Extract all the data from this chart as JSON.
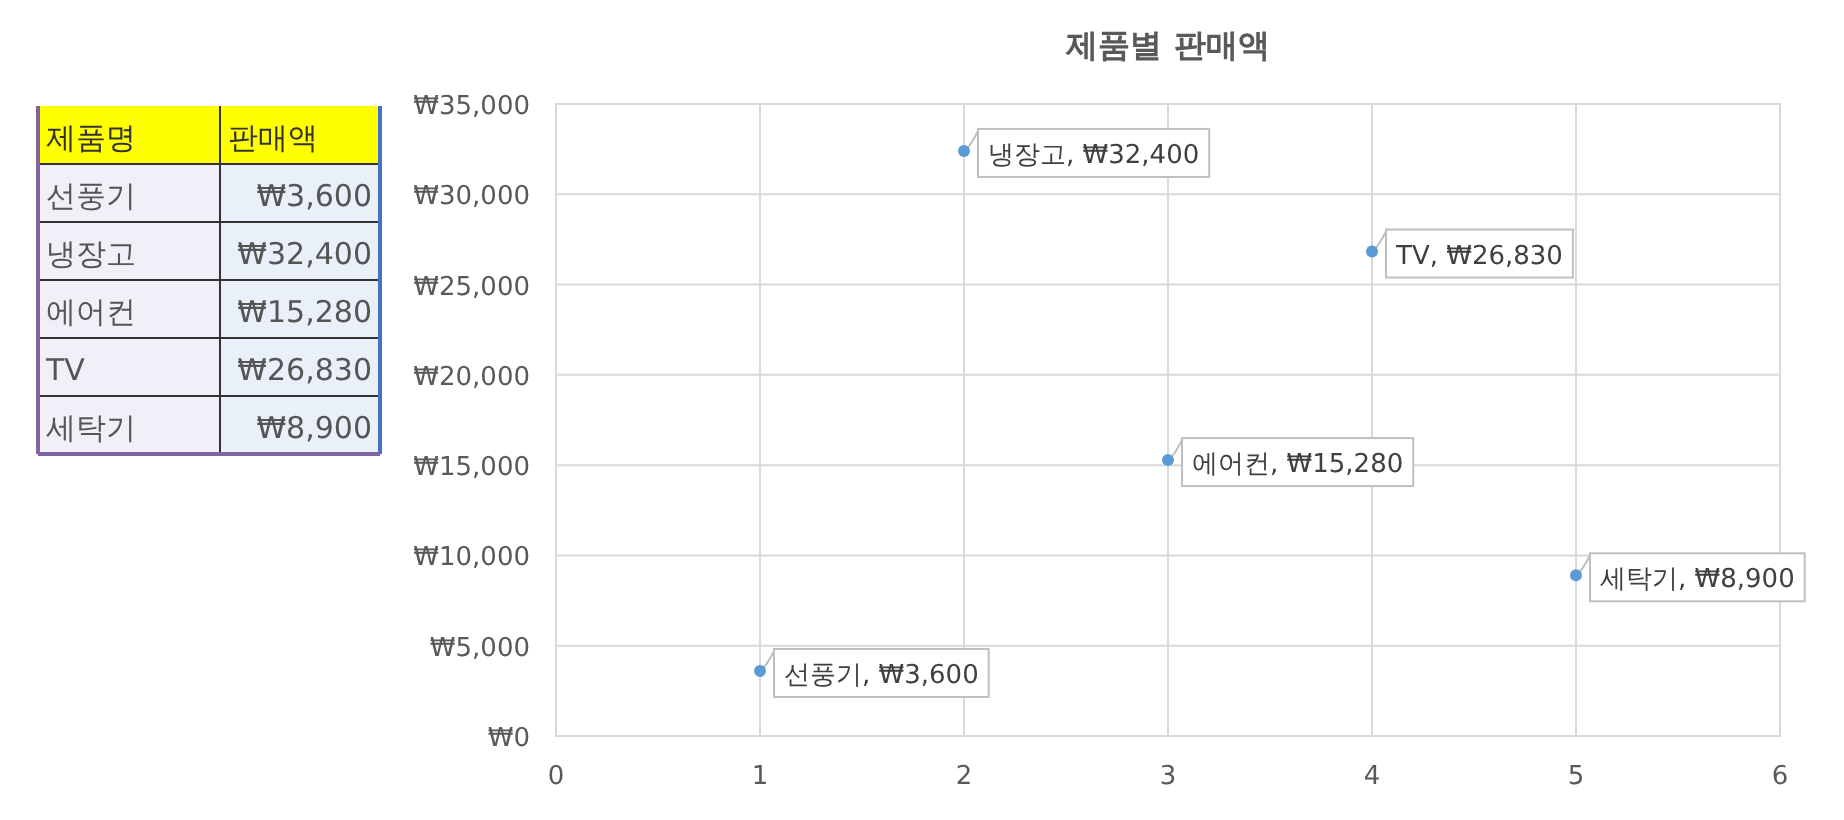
{
  "chart_data": [
    {
      "type": "other",
      "xlabel": "제품명",
      "ylabel": "판매액",
      "categories": [
        "선풍기",
        "냉장고",
        "에어컨",
        "TV",
        "세탁기"
      ],
      "value_labels": [
        "₩3,600",
        "₩32,400",
        "₩15,280",
        "₩26,830",
        "₩8,900"
      ]
    },
    {
      "type": "scatter",
      "title": "제품별 판매액",
      "x": [
        1,
        2,
        3,
        4,
        5
      ],
      "series": [
        {
          "color": "#5b9bd5",
          "values": [
            3600,
            32400,
            15280,
            26830,
            8900
          ],
          "value_labels": [
            "선풍기, ₩3,600",
            "냉장고, ₩32,400",
            "에어컨, ₩15,280",
            "TV, ₩26,830",
            "세탁기, ₩8,900"
          ]
        }
      ],
      "xlim": [
        0,
        6
      ],
      "xticks": [
        0,
        1,
        2,
        3,
        4,
        5,
        6
      ],
      "ylim": [
        0,
        35000
      ],
      "yticks": [
        {
          "value": 0,
          "label": "₩0"
        },
        {
          "value": 5000,
          "label": "₩5,000"
        },
        {
          "value": 10000,
          "label": "₩10,000"
        },
        {
          "value": 15000,
          "label": "₩15,000"
        },
        {
          "value": 20000,
          "label": "₩20,000"
        },
        {
          "value": 25000,
          "label": "₩25,000"
        },
        {
          "value": 30000,
          "label": "₩30,000"
        },
        {
          "value": 35000,
          "label": "₩35,000"
        }
      ],
      "grid": true,
      "marker": "circle"
    }
  ]
}
